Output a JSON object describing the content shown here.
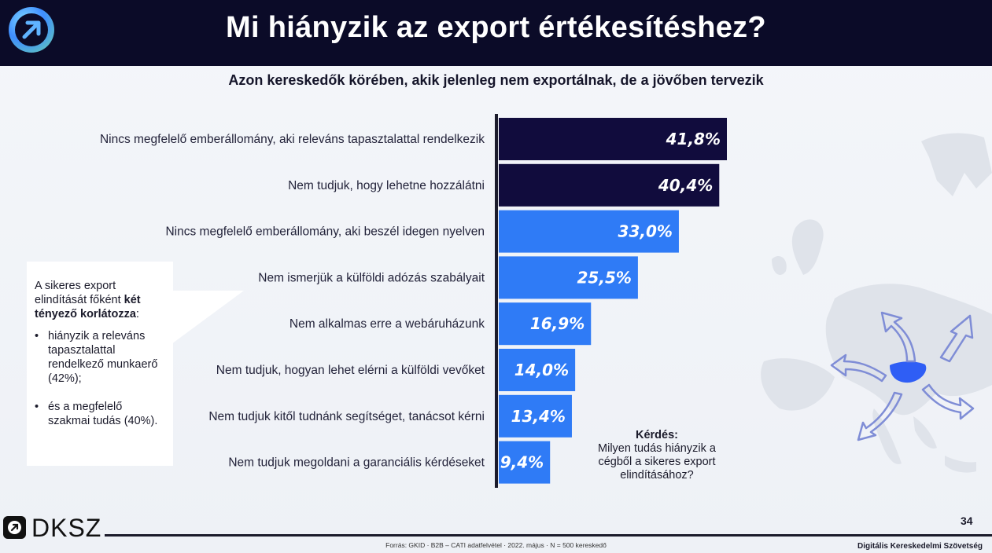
{
  "header": {
    "title": "Mi hiányzik az export értékesítéshez?",
    "subtitle": "Azon kereskedők körében, akik jelenleg nem exportálnak, de a jövőben tervezik"
  },
  "chart_data": {
    "type": "bar",
    "orientation": "horizontal",
    "categories": [
      "Nincs megfelelő emberállomány, aki releváns tapasztalattal rendelkezik",
      "Nem tudjuk, hogy lehetne hozzálátni",
      "Nincs megfelelő emberállomány, aki beszél idegen nyelven",
      "Nem ismerjük a külföldi adózás szabályait",
      "Nem alkalmas erre a webáruházunk",
      "Nem tudjuk, hogyan lehet elérni a külföldi vevőket",
      "Nem tudjuk kitől tudnánk segítséget, tanácsot kérni",
      "Nem tudjuk megoldani a garanciális kérdéseket"
    ],
    "values": [
      41.8,
      40.4,
      33.0,
      25.5,
      16.9,
      14.0,
      13.4,
      9.4
    ],
    "value_labels": [
      "41,8%",
      "40,4%",
      "33,0%",
      "25,5%",
      "16,9%",
      "14,0%",
      "13,4%",
      "9,4%"
    ],
    "xlim": [
      0,
      100
    ],
    "colors": {
      "highlight": "#110c3d",
      "default": "#2f7bf6",
      "axis": "#1b1b2b"
    },
    "highlight_count": 2
  },
  "callout": {
    "intro_prefix": "A sikeres export elindítását főként ",
    "intro_bold": "két tényező korlátozza",
    "intro_suffix": ":",
    "items": [
      "hiányzik a releváns tapasztalattal rendelkező munkaerő (42%);",
      "és a megfelelő szakmai tudás (40%)."
    ]
  },
  "question": {
    "label": "Kérdés:",
    "text": "Milyen tudás hiányzik a cégből a sikeres export elindításához?"
  },
  "footer": {
    "logo_text": "DKSZ",
    "page_number": "34",
    "source": "Forrás: GKID · B2B – CATI adatfelvétel · 2022. május · N = 500 kereskedő",
    "organization": "Digitális Kereskedelmi Szövetség"
  },
  "icons": {
    "logo": "arrow-up-right-icon",
    "map": "europe-map-icon"
  }
}
